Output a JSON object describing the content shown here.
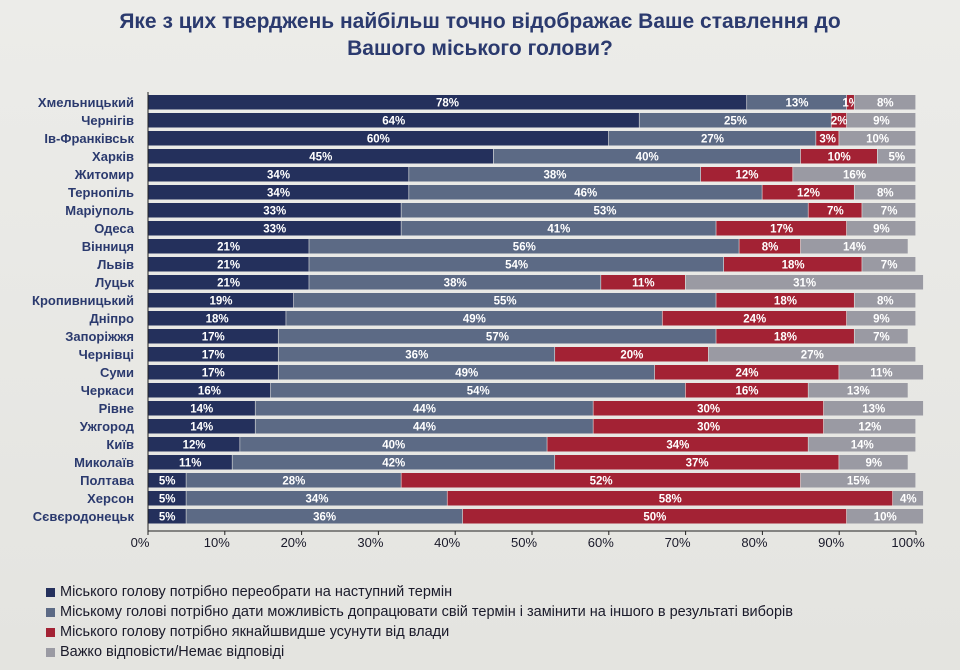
{
  "chart_data": {
    "type": "bar",
    "orientation": "horizontal",
    "stacked": true,
    "title_lines": [
      "Яке з цих тверджень найбільш точно відображає Ваше ставлення до",
      "Вашого міського голови?"
    ],
    "categories": [
      "Хмельницький",
      "Чернігів",
      "Ів-Франківськ",
      "Харків",
      "Житомир",
      "Тернопіль",
      "Маріуполь",
      "Одеса",
      "Вінниця",
      "Львів",
      "Луцьк",
      "Кропивницький",
      "Дніпро",
      "Запоріжжя",
      "Чернівці",
      "Суми",
      "Черкаси",
      "Рівне",
      "Ужгород",
      "Київ",
      "Миколаїв",
      "Полтава",
      "Херсон",
      "Сєвєродонецьк"
    ],
    "series": [
      {
        "name": "Міського голову  потрібно переобрати на наступний термін",
        "color": "#24305c",
        "values": [
          78,
          64,
          60,
          45,
          34,
          34,
          33,
          33,
          21,
          21,
          21,
          19,
          18,
          17,
          17,
          17,
          16,
          14,
          14,
          12,
          11,
          5,
          5,
          5
        ]
      },
      {
        "name": "Міському голові потрібно дати можливість допрацювати свій термін і замінити на іншого в результаті виборів",
        "color": "#5c6a85",
        "values": [
          13,
          25,
          27,
          40,
          38,
          46,
          53,
          41,
          56,
          54,
          38,
          55,
          49,
          57,
          36,
          49,
          54,
          44,
          44,
          40,
          42,
          28,
          34,
          36
        ]
      },
      {
        "name": "Міського голову потрібно якнайшвидше усунути від влади",
        "color": "#a32234",
        "values": [
          1,
          2,
          3,
          10,
          12,
          12,
          7,
          17,
          8,
          18,
          11,
          18,
          24,
          18,
          20,
          24,
          16,
          30,
          30,
          34,
          37,
          52,
          58,
          50
        ]
      },
      {
        "name": "Важко відповісти/Немає відповіді",
        "color": "#9a9aa3",
        "values": [
          8,
          9,
          10,
          5,
          16,
          8,
          7,
          9,
          14,
          7,
          31,
          8,
          9,
          7,
          27,
          11,
          13,
          13,
          12,
          14,
          9,
          15,
          4,
          10
        ]
      }
    ],
    "value_suffix": "%",
    "xlim": [
      0,
      100
    ],
    "xticks": [
      "0%",
      "10%",
      "20%",
      "30%",
      "40%",
      "50%",
      "60%",
      "70%",
      "80%",
      "90%",
      "100%"
    ],
    "legend_position": "bottom-left"
  }
}
